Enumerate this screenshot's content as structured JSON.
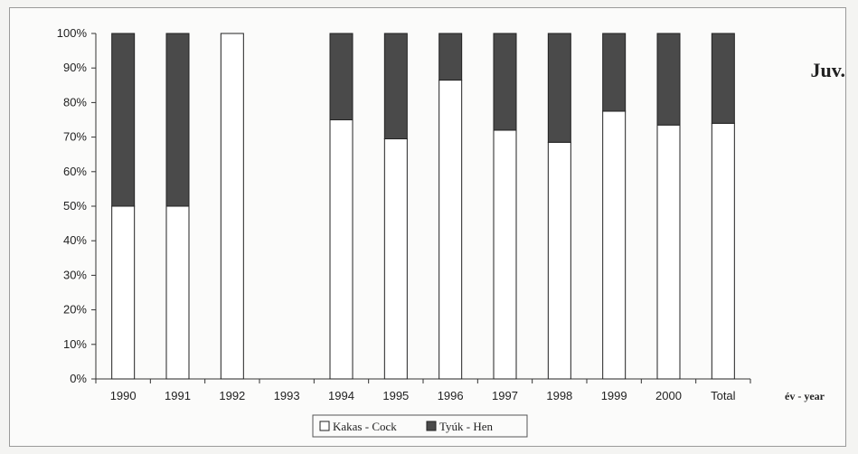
{
  "chart_data": {
    "type": "bar",
    "stacked": true,
    "percent_scale": true,
    "title": "Juv.",
    "xlabel": "év - year",
    "ylabel": "",
    "ylim": [
      0,
      100
    ],
    "y_ticks": [
      "0%",
      "10%",
      "20%",
      "30%",
      "40%",
      "50%",
      "60%",
      "70%",
      "80%",
      "90%",
      "100%"
    ],
    "categories": [
      "1990",
      "1991",
      "1992",
      "1993",
      "1994",
      "1995",
      "1996",
      "1997",
      "1998",
      "1999",
      "2000",
      "Total"
    ],
    "series": [
      {
        "name": "Kakas - Cock",
        "color": "#ffffff",
        "values": [
          50,
          50,
          100,
          null,
          75,
          69.5,
          86.5,
          72,
          68.5,
          77.5,
          73.5,
          74
        ]
      },
      {
        "name": "Tyúk - Hen",
        "color": "#4a4a4a",
        "values": [
          50,
          50,
          0,
          null,
          25,
          30.5,
          13.5,
          28,
          31.5,
          22.5,
          26.5,
          26
        ]
      }
    ],
    "grid": false,
    "legend_position": "bottom-center"
  }
}
